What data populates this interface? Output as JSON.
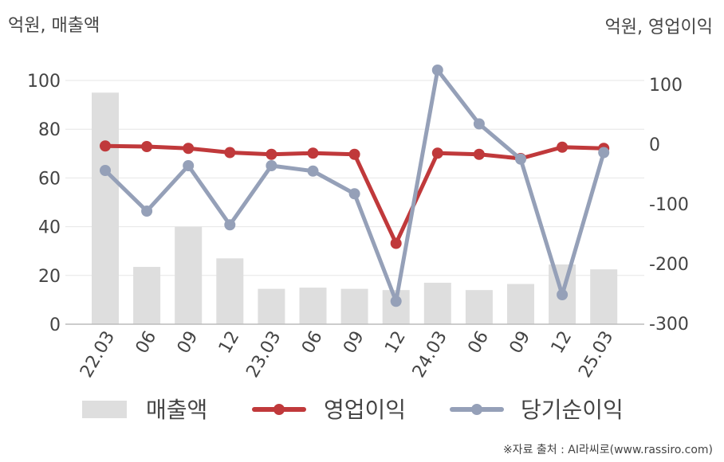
{
  "units": {
    "left": "억원, 매출액",
    "right": "억원, 영업이익"
  },
  "source": "※자료 출처 : AI라씨로(www.rassiro.com)",
  "colors": {
    "bar": "#dedede",
    "operating_profit": "#c0393b",
    "net_income": "#95a0b8",
    "grid": "#e6e6e6",
    "axis": "#bbbbbb",
    "text": "#444444"
  },
  "chart_data": {
    "type": "bar",
    "categories": [
      "22.03",
      "06",
      "09",
      "12",
      "23.03",
      "06",
      "09",
      "12",
      "24.03",
      "06",
      "09",
      "12",
      "25.03"
    ],
    "left_axis": {
      "ylim": [
        0,
        100
      ],
      "ticks": [
        0,
        20,
        40,
        60,
        80,
        100
      ]
    },
    "right_axis": {
      "ylim": [
        -300,
        130
      ],
      "ticks": [
        -300,
        -200,
        -100,
        0,
        100
      ]
    },
    "series": [
      {
        "name": "매출액",
        "type": "bar",
        "axis": "left",
        "values": [
          95,
          23.5,
          40,
          27,
          14.5,
          15,
          14.5,
          14,
          17,
          14,
          16.5,
          24.5,
          22.5
        ]
      },
      {
        "name": "영업이익",
        "type": "line",
        "axis": "right",
        "values": [
          -3,
          -4,
          -7,
          -14,
          -17,
          -15,
          -17,
          -166,
          -15,
          -17,
          -24,
          -5,
          -7
        ]
      },
      {
        "name": "당기순이익",
        "type": "line",
        "axis": "right",
        "values": [
          -44,
          -112,
          -36,
          -135,
          -36,
          -45,
          -83,
          -263,
          124,
          34,
          -25,
          -252,
          -14
        ]
      }
    ],
    "legend_position": "bottom",
    "grid": true
  }
}
